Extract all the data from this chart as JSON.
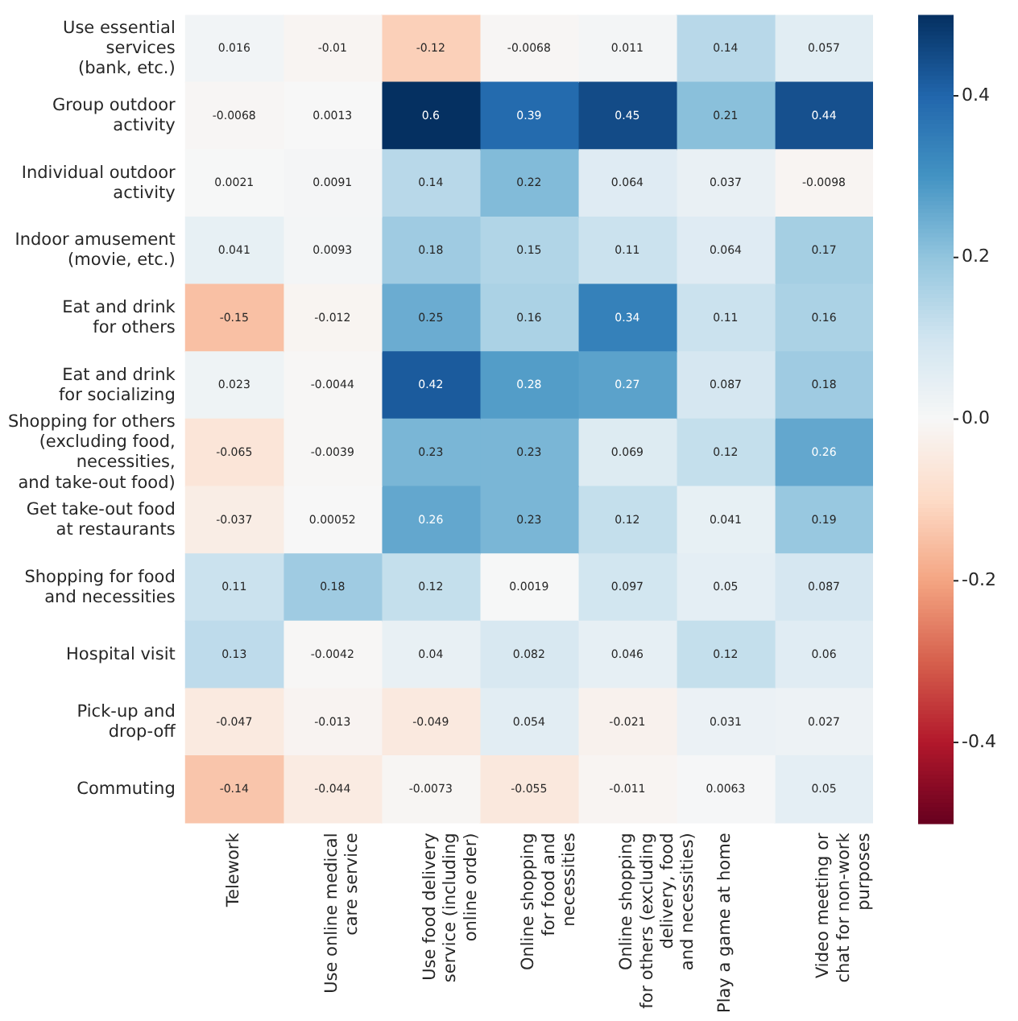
{
  "chart_data": {
    "type": "heatmap",
    "categories": [
      "Telework",
      "Use online medical\ncare service",
      "Use food delivery\nservice (including\nonline order)",
      "Online shopping\nfor food and\nnecessities",
      "Online shopping\nfor others (excluding\ndelivery, food\nand necessities)",
      "Play a game at home",
      "Video meeting or\nchat for non-work\npurposes"
    ],
    "y_categories": [
      "Use essential\nservices\n(bank, etc.)",
      "Group outdoor\nactivity",
      "Individual outdoor\nactivity",
      "Indoor amusement\n(movie, etc.)",
      "Eat and drink\nfor others",
      "Eat and drink\nfor socializing",
      "Shopping for others\n(excluding food,\nnecessities,\nand take-out food)",
      "Get take-out food\nat restaurants",
      "Shopping for food\nand necessities",
      "Hospital visit",
      "Pick-up and\ndrop-off",
      "Commuting"
    ],
    "cells": [
      [
        0.016,
        -0.01,
        -0.12,
        -0.0068,
        0.011,
        0.14,
        0.057
      ],
      [
        -0.0068,
        0.0013,
        0.6,
        0.39,
        0.45,
        0.21,
        0.44
      ],
      [
        0.0021,
        0.0091,
        0.14,
        0.22,
        0.064,
        0.037,
        -0.0098
      ],
      [
        0.041,
        0.0093,
        0.18,
        0.15,
        0.11,
        0.064,
        0.17
      ],
      [
        -0.15,
        -0.012,
        0.25,
        0.16,
        0.34,
        0.11,
        0.16
      ],
      [
        0.023,
        -0.0044,
        0.42,
        0.28,
        0.27,
        0.087,
        0.18
      ],
      [
        -0.065,
        -0.0039,
        0.23,
        0.23,
        0.069,
        0.12,
        0.26
      ],
      [
        -0.037,
        0.00052,
        0.26,
        0.23,
        0.12,
        0.041,
        0.19
      ],
      [
        0.11,
        0.18,
        0.12,
        0.0019,
        0.097,
        0.05,
        0.087
      ],
      [
        0.13,
        -0.0042,
        0.04,
        0.082,
        0.046,
        0.12,
        0.06
      ],
      [
        -0.047,
        -0.013,
        -0.049,
        0.054,
        -0.021,
        0.031,
        0.027
      ],
      [
        -0.14,
        -0.044,
        -0.0073,
        -0.055,
        -0.011,
        0.0063,
        0.05
      ]
    ],
    "clim": [
      -0.5,
      0.5
    ],
    "cticks": [
      -0.4,
      -0.2,
      {
        "value": 0,
        "label": "0.0"
      },
      0.2,
      0.4
    ],
    "data_labels": true
  }
}
